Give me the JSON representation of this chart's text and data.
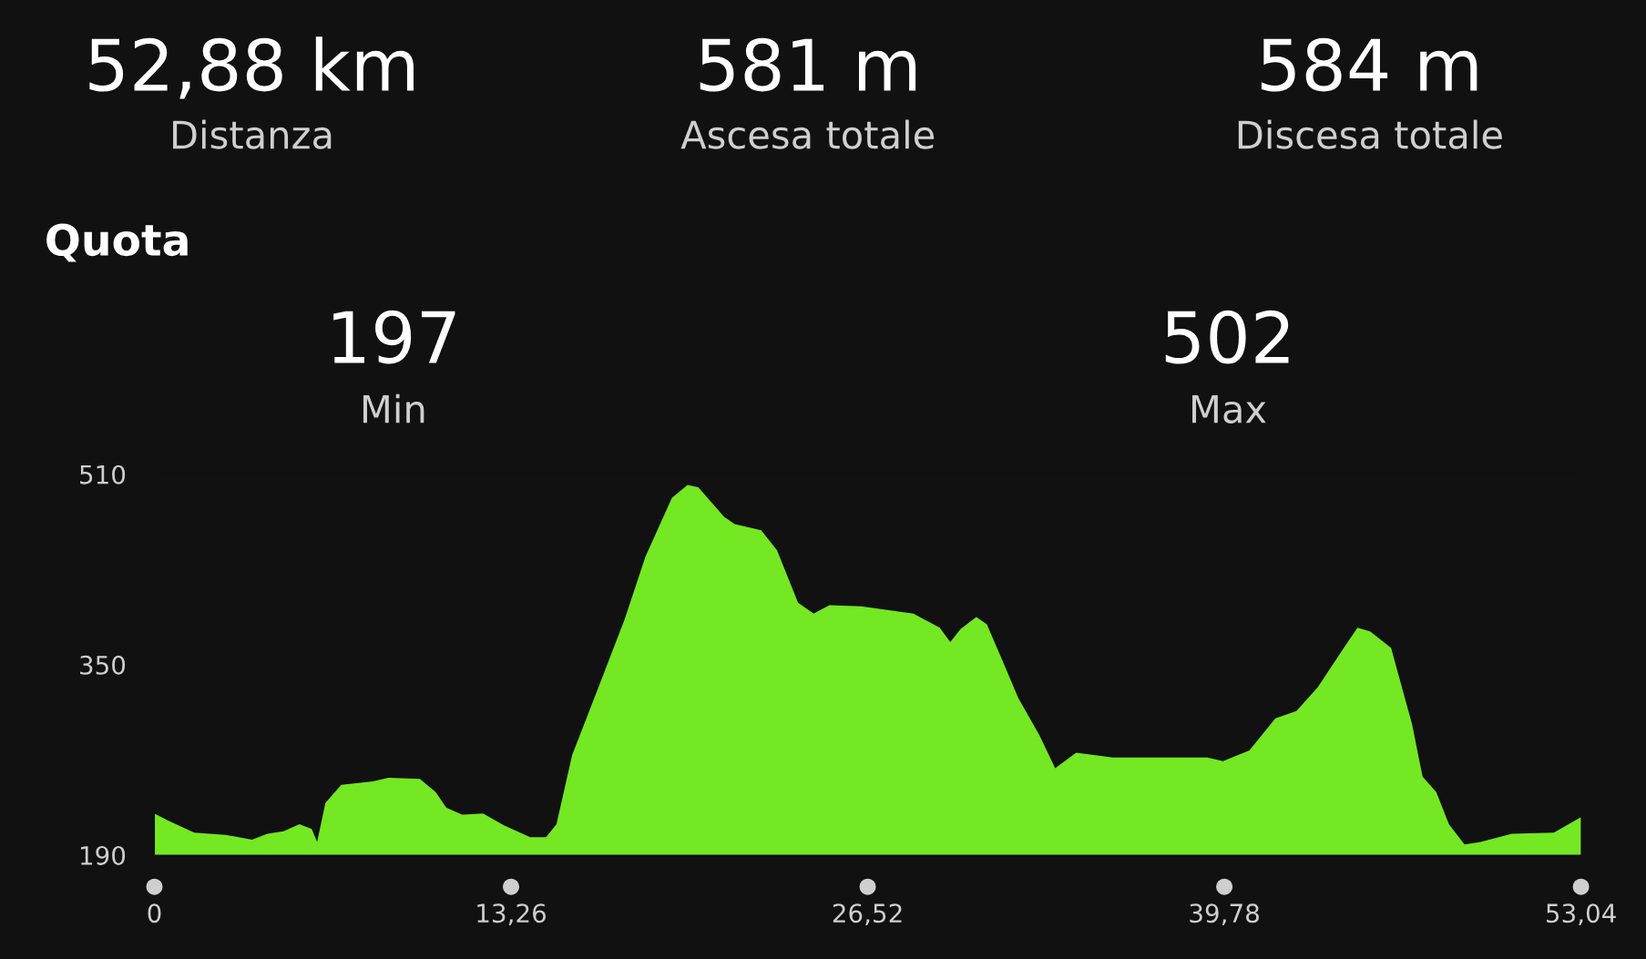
{
  "chart_data": {
    "type": "area",
    "title": "Quota",
    "annotations": [
      "52,88 km",
      "Distanza",
      "581 m",
      "Ascesa totale",
      "584 m",
      "Discesa totale",
      "197",
      "Min",
      "502",
      "Max"
    ],
    "x": [
      0,
      0.51,
      1.48,
      2.65,
      3.63,
      4.2,
      4.8,
      5.39,
      5.85,
      6.05,
      6.36,
      6.95,
      8.12,
      8.7,
      9.87,
      10.46,
      10.85,
      11.44,
      12.22,
      13.0,
      13.97,
      14.56,
      14.95,
      15.53,
      16.51,
      17.48,
      18.26,
      19.24,
      19.82,
      20.22,
      21.19,
      21.58,
      22.56,
      23.15,
      23.93,
      24.51,
      25.1,
      26.27,
      28.22,
      29.2,
      29.59,
      29.98,
      30.56,
      30.95,
      31.54,
      32.12,
      32.9,
      33.49,
      34.27,
      35.64,
      37.59,
      39.15,
      39.73,
      40.71,
      41.68,
      42.46,
      43.25,
      44.22,
      44.73,
      45.2,
      45.98,
      46.76,
      47.15,
      47.66,
      48.13,
      48.71,
      49.3,
      50.47,
      52.03,
      53.04
    ],
    "series": [
      {
        "color": "#74e823",
        "values": [
          225,
          219,
          209,
          207,
          203,
          208,
          210,
          216,
          212,
          201,
          234,
          249,
          252,
          255,
          254,
          243,
          230,
          224,
          225,
          215,
          205,
          205,
          216,
          274,
          331,
          388,
          441,
          490,
          501,
          499,
          474,
          468,
          463,
          446,
          402,
          393,
          400,
          399,
          393,
          381,
          369,
          380,
          390,
          384,
          353,
          322,
          291,
          263,
          276,
          272,
          272,
          272,
          269,
          278,
          305,
          311,
          331,
          364,
          381,
          378,
          364,
          300,
          256,
          243,
          216,
          199,
          201,
          208,
          209,
          222
        ]
      }
    ],
    "xlim": [
      0,
      53.04
    ],
    "xticks": [
      0,
      {
        "value": 13.26,
        "label": "13,26"
      },
      {
        "value": 26.52,
        "label": "26,52"
      },
      {
        "value": 39.78,
        "label": "39,78"
      },
      {
        "value": 53.04,
        "label": "53,04"
      }
    ],
    "ylim": [
      190,
      510
    ],
    "yticks": [
      190,
      350,
      510
    ],
    "grid": false
  }
}
